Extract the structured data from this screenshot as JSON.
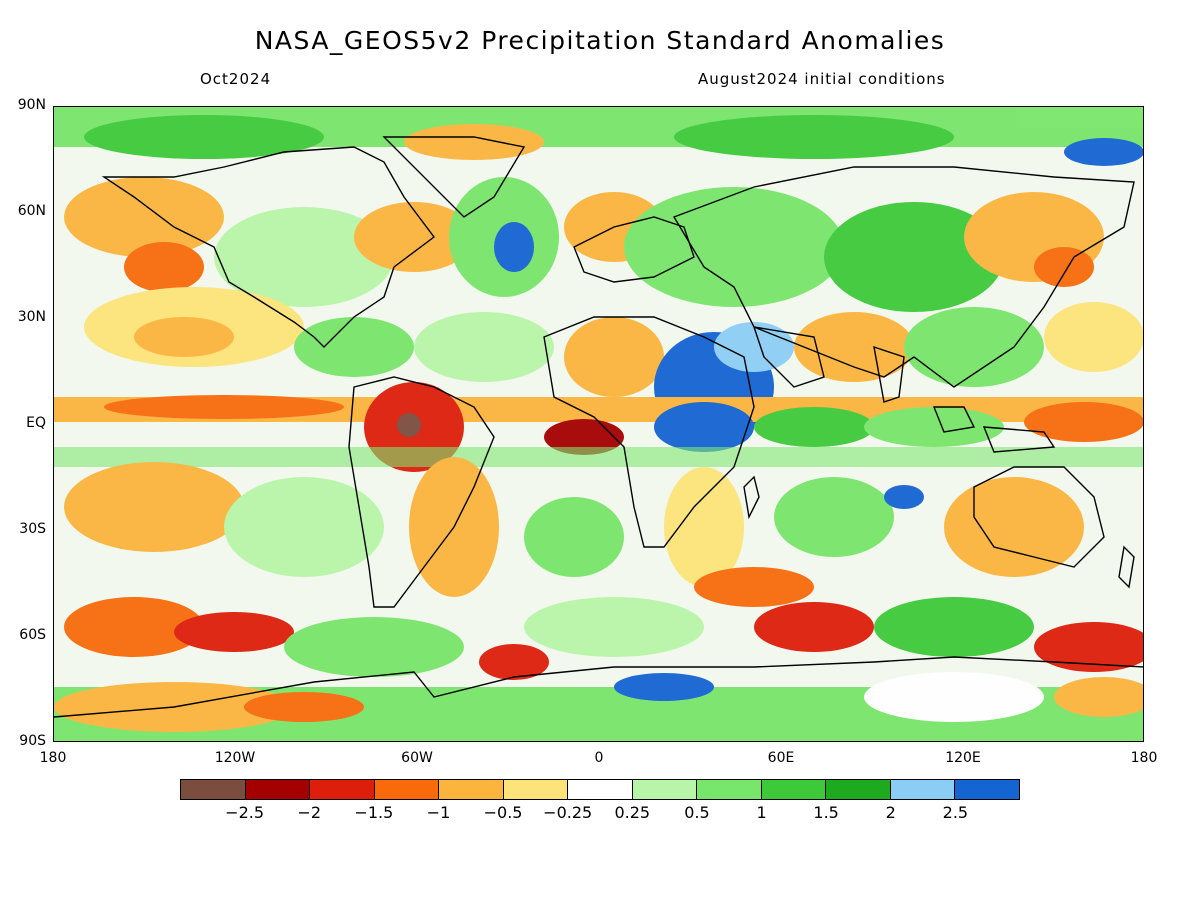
{
  "title": "NASA_GEOS5v2 Precipitation Standard Anomalies",
  "subtitle_left": "Oct2024",
  "subtitle_right": "August2024 initial conditions",
  "lat_labels": [
    "90N",
    "60N",
    "30N",
    "EQ",
    "30S",
    "60S",
    "90S"
  ],
  "lon_labels": [
    "180",
    "120W",
    "60W",
    "0",
    "60E",
    "120E",
    "180"
  ],
  "legend": {
    "colors": [
      "#7b4d3f",
      "#a50000",
      "#dc1e0a",
      "#f86a0c",
      "#fbb43c",
      "#fde37a",
      "#ffffff",
      "#b9f5a8",
      "#78e66a",
      "#3ec93a",
      "#1eaa1e",
      "#8ccdf5",
      "#1464d2"
    ],
    "labels": [
      "−2.5",
      "−2",
      "−1.5",
      "−1",
      "−0.5",
      "−0.25",
      "0.25",
      "0.5",
      "1",
      "1.5",
      "2",
      "2.5"
    ]
  }
}
